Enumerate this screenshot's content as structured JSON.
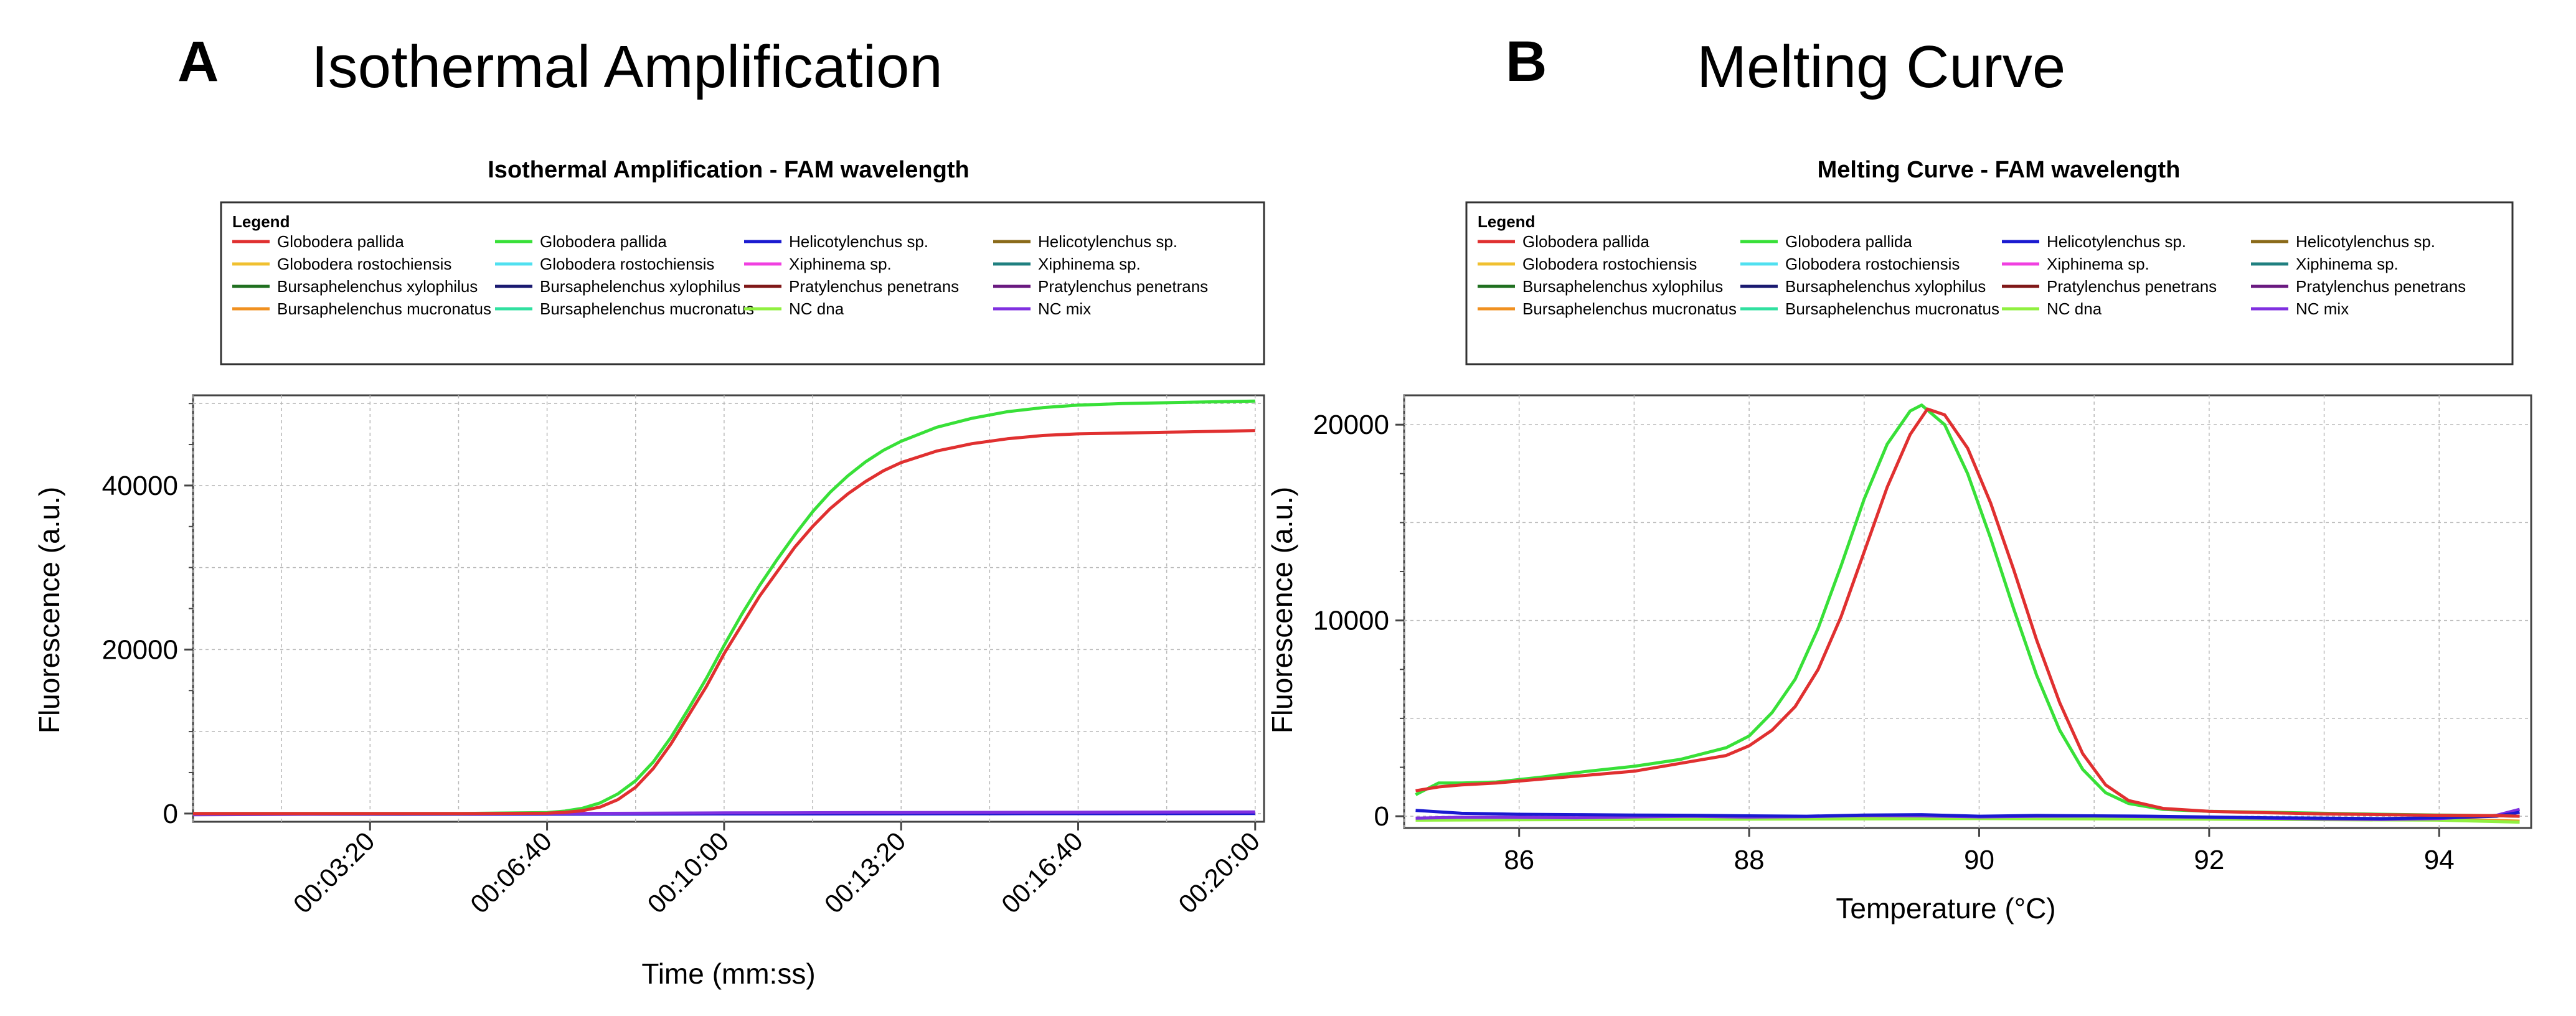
{
  "panels": [
    {
      "letter": "A",
      "heading": "Isothermal Amplification",
      "title": "Isothermal Amplification - FAM wavelength",
      "xlabel": "Time (mm:ss)",
      "ylabel": "Fluorescence (a.u.)"
    },
    {
      "letter": "B",
      "heading": "Melting Curve",
      "title": "Melting Curve - FAM wavelength",
      "xlabel": "Temperature (°C)",
      "ylabel": "Fluorescence (a.u.)"
    }
  ],
  "legend": {
    "title": "Legend",
    "entries": [
      {
        "name": "Globodera pallida",
        "color": "#e03030"
      },
      {
        "name": "Globodera pallida",
        "color": "#38e038"
      },
      {
        "name": "Helicotylenchus sp.",
        "color": "#1a1ad0"
      },
      {
        "name": "Helicotylenchus sp.",
        "color": "#8a6a1a"
      },
      {
        "name": "Globodera rostochiensis",
        "color": "#f0c030"
      },
      {
        "name": "Globodera rostochiensis",
        "color": "#50e0f0"
      },
      {
        "name": "Xiphinema sp.",
        "color": "#f040e0"
      },
      {
        "name": "Xiphinema sp.",
        "color": "#208080"
      },
      {
        "name": "Bursaphelenchus xylophilus",
        "color": "#207020"
      },
      {
        "name": "Bursaphelenchus xylophilus",
        "color": "#1a1a70"
      },
      {
        "name": "Pratylenchus penetrans",
        "color": "#801818"
      },
      {
        "name": "Pratylenchus penetrans",
        "color": "#6a1a80"
      },
      {
        "name": "Bursaphelenchus mucronatus",
        "color": "#f09020"
      },
      {
        "name": "Bursaphelenchus mucronatus",
        "color": "#30e0a0"
      },
      {
        "name": "NC dna",
        "color": "#90f040"
      },
      {
        "name": "NC mix",
        "color": "#8030e0"
      }
    ]
  },
  "chart_data": [
    {
      "type": "line",
      "title": "Isothermal Amplification - FAM wavelength",
      "xlabel": "Time (mm:ss)",
      "ylabel": "Fluorescence (a.u.)",
      "x_unit": "seconds",
      "xlim": [
        0,
        1210
      ],
      "ylim": [
        -1000,
        51000
      ],
      "x_ticks": [
        200,
        400,
        600,
        800,
        1000,
        1200
      ],
      "x_tick_labels": [
        "00:03:20",
        "00:06:40",
        "00:10:00",
        "00:13:20",
        "00:16:40",
        "00:20:00"
      ],
      "y_ticks": [
        0,
        20000,
        40000
      ],
      "y_tick_labels": [
        "0",
        "20000",
        "40000"
      ],
      "grid": true,
      "series": [
        {
          "name": "Globodera pallida",
          "color": "#e03030",
          "x": [
            0,
            200,
            300,
            400,
            420,
            440,
            460,
            480,
            500,
            520,
            540,
            560,
            580,
            600,
            620,
            640,
            660,
            680,
            700,
            720,
            740,
            760,
            780,
            800,
            840,
            880,
            920,
            960,
            1000,
            1050,
            1100,
            1150,
            1200
          ],
          "y": [
            0,
            0,
            0,
            50,
            150,
            350,
            800,
            1700,
            3200,
            5500,
            8500,
            12000,
            15500,
            19500,
            23000,
            26500,
            29500,
            32500,
            35000,
            37200,
            39000,
            40500,
            41800,
            42800,
            44200,
            45100,
            45700,
            46100,
            46300,
            46400,
            46500,
            46600,
            46700
          ]
        },
        {
          "name": "Globodera pallida",
          "color": "#38e038",
          "x": [
            0,
            200,
            300,
            400,
            420,
            440,
            460,
            480,
            500,
            520,
            540,
            560,
            580,
            600,
            620,
            640,
            660,
            680,
            700,
            720,
            740,
            760,
            780,
            800,
            840,
            880,
            920,
            960,
            1000,
            1050,
            1100,
            1150,
            1200
          ],
          "y": [
            0,
            0,
            0,
            120,
            300,
            650,
            1300,
            2400,
            4000,
            6300,
            9300,
            12800,
            16500,
            20500,
            24300,
            27800,
            31000,
            34000,
            36800,
            39200,
            41200,
            42900,
            44300,
            45400,
            47100,
            48200,
            49000,
            49500,
            49800,
            50000,
            50100,
            50200,
            50300
          ]
        },
        {
          "name": "NC mix",
          "color": "#8030e0",
          "x": [
            0,
            200,
            400,
            600,
            800,
            1000,
            1200
          ],
          "y": [
            -150,
            -50,
            0,
            80,
            120,
            160,
            200
          ]
        },
        {
          "name": "Helicotylenchus sp.",
          "color": "#1a1ad0",
          "x": [
            0,
            300,
            600,
            900,
            1200
          ],
          "y": [
            -100,
            -80,
            -40,
            -20,
            0
          ]
        }
      ]
    },
    {
      "type": "line",
      "title": "Melting Curve - FAM wavelength",
      "xlabel": "Temperature (°C)",
      "ylabel": "Fluorescence (a.u.)",
      "xlim": [
        85,
        94.8
      ],
      "ylim": [
        -600,
        21500
      ],
      "x_ticks": [
        86,
        88,
        90,
        92,
        94
      ],
      "x_tick_labels": [
        "86",
        "88",
        "90",
        "92",
        "94"
      ],
      "y_ticks": [
        0,
        10000,
        20000
      ],
      "y_tick_labels": [
        "0",
        "10000",
        "20000"
      ],
      "grid": true,
      "series": [
        {
          "name": "Globodera pallida",
          "color": "#e03030",
          "x": [
            85.1,
            85.3,
            85.5,
            85.8,
            86.2,
            86.6,
            87.0,
            87.4,
            87.8,
            88.0,
            88.2,
            88.4,
            88.6,
            88.8,
            89.0,
            89.2,
            89.4,
            89.55,
            89.7,
            89.9,
            90.1,
            90.3,
            90.5,
            90.7,
            90.9,
            91.1,
            91.3,
            91.6,
            92.0,
            92.5,
            93.0,
            93.5,
            94.0,
            94.5,
            94.7
          ],
          "y": [
            1300,
            1500,
            1600,
            1700,
            1900,
            2100,
            2300,
            2700,
            3100,
            3600,
            4400,
            5600,
            7500,
            10200,
            13500,
            16800,
            19500,
            20800,
            20500,
            18800,
            16000,
            12600,
            9000,
            5800,
            3200,
            1600,
            800,
            400,
            250,
            180,
            120,
            80,
            50,
            30,
            0
          ]
        },
        {
          "name": "Globodera pallida",
          "color": "#38e038",
          "x": [
            85.1,
            85.3,
            85.5,
            85.8,
            86.2,
            86.6,
            87.0,
            87.4,
            87.8,
            88.0,
            88.2,
            88.4,
            88.6,
            88.8,
            89.0,
            89.2,
            89.4,
            89.5,
            89.7,
            89.9,
            90.1,
            90.3,
            90.5,
            90.7,
            90.9,
            91.1,
            91.3,
            91.6,
            92.0,
            92.5,
            93.0,
            93.5,
            94.0,
            94.5,
            94.7
          ],
          "y": [
            1100,
            1700,
            1700,
            1750,
            2000,
            2300,
            2550,
            2900,
            3500,
            4100,
            5300,
            7000,
            9600,
            12800,
            16200,
            19000,
            20700,
            21000,
            20000,
            17500,
            14200,
            10600,
            7200,
            4400,
            2400,
            1200,
            650,
            350,
            250,
            200,
            150,
            100,
            60,
            30,
            0
          ]
        },
        {
          "name": "Helicotylenchus sp.",
          "color": "#1a1ad0",
          "x": [
            85.1,
            85.5,
            86,
            86.5,
            87,
            87.5,
            88,
            88.5,
            89,
            89.5,
            90,
            90.5,
            91,
            91.5,
            92,
            92.5,
            93,
            93.5,
            94,
            94.5,
            94.7
          ],
          "y": [
            300,
            150,
            100,
            80,
            60,
            50,
            20,
            0,
            60,
            80,
            0,
            40,
            20,
            0,
            -40,
            -80,
            -100,
            -120,
            -80,
            0,
            200
          ]
        },
        {
          "name": "NC mix",
          "color": "#8030e0",
          "x": [
            85.1,
            85.5,
            86,
            86.5,
            87,
            87.5,
            88,
            88.5,
            89,
            89.5,
            90,
            90.5,
            91,
            91.5,
            92,
            92.5,
            93,
            93.5,
            94,
            94.5,
            94.7
          ],
          "y": [
            -100,
            -50,
            -60,
            -80,
            -30,
            0,
            -40,
            -20,
            40,
            20,
            -30,
            0,
            10,
            -20,
            -60,
            -100,
            -140,
            -160,
            -120,
            50,
            350
          ]
        },
        {
          "name": "NC dna",
          "color": "#90f040",
          "x": [
            85.1,
            86,
            88,
            90,
            92,
            94,
            94.7
          ],
          "y": [
            -200,
            -180,
            -150,
            -120,
            -150,
            -200,
            -300
          ]
        },
        {
          "name": "Bursaphelenchus mucronatus",
          "color": "#f09020",
          "x": [
            85.1,
            86,
            88,
            90,
            92,
            94,
            94.7
          ],
          "y": [
            -150,
            -120,
            -100,
            -80,
            -100,
            -150,
            -250
          ]
        }
      ]
    }
  ]
}
